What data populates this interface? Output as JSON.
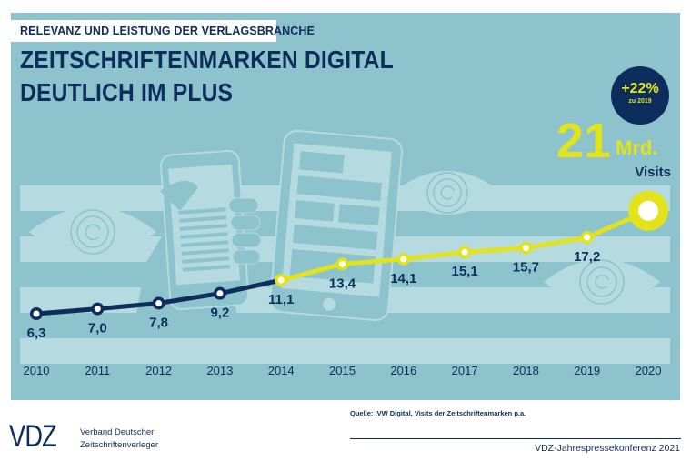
{
  "header": {
    "kicker": "RELEVANZ UND LEISTUNG DER VERLAGSBRANCHE",
    "title_line1": "ZEITSCHRIFTENMARKEN DIGITAL",
    "title_line2": "DEUTLICH IM PLUS"
  },
  "highlight": {
    "badge_value": "+22%",
    "badge_sub": "zu 2019",
    "big_number": "21",
    "big_unit": "Mrd.",
    "big_label": "Visits"
  },
  "colors": {
    "panel": "#8dc3cd",
    "band": "#b5dae0",
    "navy": "#0d2d5c",
    "accent_yellow": "#e3e31b"
  },
  "chart_data": {
    "type": "line",
    "title": "ZEITSCHRIFTENMARKEN DIGITAL DEUTLICH IM PLUS",
    "xlabel": "",
    "ylabel": "Visits (Mrd.)",
    "categories": [
      "2010",
      "2011",
      "2012",
      "2013",
      "2014",
      "2015",
      "2016",
      "2017",
      "2018",
      "2019",
      "2020"
    ],
    "series": [
      {
        "name": "2010-2014",
        "color": "#0d2d5c",
        "x": [
          "2010",
          "2011",
          "2012",
          "2013",
          "2014"
        ],
        "values": [
          6.3,
          7.0,
          7.8,
          9.2,
          11.1
        ]
      },
      {
        "name": "2014-2020",
        "color": "#e3e31b",
        "x": [
          "2014",
          "2015",
          "2016",
          "2017",
          "2018",
          "2019",
          "2020"
        ],
        "values": [
          11.1,
          13.4,
          14.1,
          15.1,
          15.7,
          17.2,
          21.0
        ]
      }
    ],
    "labels": [
      "6,3",
      "7,0",
      "7,8",
      "9,2",
      "11,1",
      "13,4",
      "14,1",
      "15,1",
      "15,7",
      "17,2",
      ""
    ],
    "grid": false,
    "legend": "none"
  },
  "footer": {
    "source": "Quelle: IVW Digital, Visits der Zeitschriftenmarken p.a.",
    "event": "VDZ-Jahrespressekonferenz 2021",
    "logo": "VDZ",
    "org_line1": "Verband Deutscher",
    "org_line2": "Zeitschriftenverleger"
  }
}
